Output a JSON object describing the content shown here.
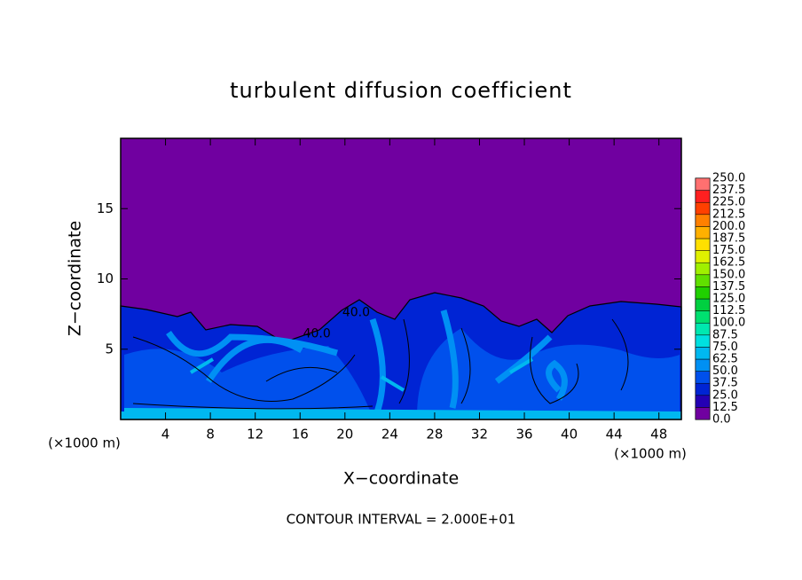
{
  "chart_data": {
    "type": "contour",
    "title": "turbulent diffusion coefficient",
    "xlabel": "X−coordinate",
    "ylabel": "Z−coordinate",
    "x_unit_label": "(×1000 m)",
    "footer": "CONTOUR INTERVAL = 2.000E+01",
    "xlim": [
      0,
      50
    ],
    "ylim": [
      0,
      20
    ],
    "xticks": [
      4,
      8,
      12,
      16,
      20,
      24,
      28,
      32,
      36,
      40,
      44,
      48
    ],
    "yticks": [
      5,
      10,
      15
    ],
    "colorbar": {
      "levels": [
        {
          "value": 0,
          "label": "0.0"
        },
        {
          "value": 12.5,
          "label": "12.5"
        },
        {
          "value": 25,
          "label": "25.0"
        },
        {
          "value": 37.5,
          "label": "37.5"
        },
        {
          "value": 50,
          "label": "50.0"
        },
        {
          "value": 62.5,
          "label": "62.5"
        },
        {
          "value": 75,
          "label": "75.0"
        },
        {
          "value": 87.5,
          "label": "87.5"
        },
        {
          "value": 100,
          "label": "100.0"
        },
        {
          "value": 112.5,
          "label": "112.5"
        },
        {
          "value": 125,
          "label": "125.0"
        },
        {
          "value": 137.5,
          "label": "137.5"
        },
        {
          "value": 150,
          "label": "150.0"
        },
        {
          "value": 162.5,
          "label": "162.5"
        },
        {
          "value": 175,
          "label": "175.0"
        },
        {
          "value": 187.5,
          "label": "187.5"
        },
        {
          "value": 200,
          "label": "200.0"
        },
        {
          "value": 212.5,
          "label": "212.5"
        },
        {
          "value": 225,
          "label": "225.0"
        },
        {
          "value": 237.5,
          "label": "237.5"
        },
        {
          "value": 250,
          "label": "250.0"
        }
      ],
      "colors": [
        "#7000a0",
        "#2400b4",
        "#0024d4",
        "#0050ec",
        "#0090f4",
        "#00b8f0",
        "#00e0e0",
        "#00e8b0",
        "#00e070",
        "#00d040",
        "#20d000",
        "#60e000",
        "#a0f000",
        "#e0f000",
        "#ffe000",
        "#ffb000",
        "#ff8000",
        "#ff4000",
        "#ff2020",
        "#ff7070"
      ]
    },
    "contour_labels": [
      {
        "x": 21,
        "y": 7.6,
        "value": 40,
        "label": "40.0"
      },
      {
        "x": 17.5,
        "y": 6.1,
        "value": 40,
        "label": "40.0"
      }
    ]
  }
}
